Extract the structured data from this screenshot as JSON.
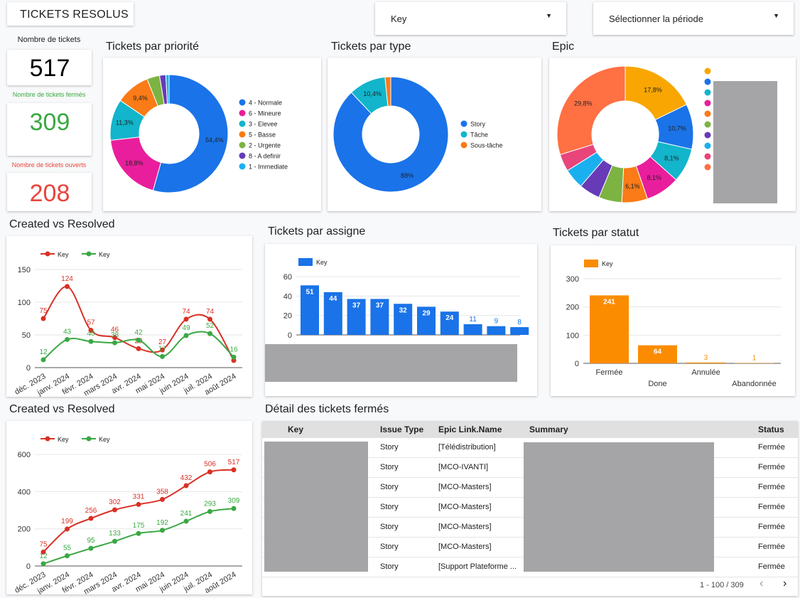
{
  "header": {
    "title": "TICKETS RESOLUS"
  },
  "filters": {
    "key_label": "Key",
    "period_label": "Sélectionner la période"
  },
  "kpis": {
    "total": {
      "label": "Nombre de tickets",
      "value": "517",
      "color": "#000000"
    },
    "closed": {
      "label": "Nombre de tickets fermés",
      "value": "309",
      "color": "#3aa843"
    },
    "open": {
      "label": "Nombre de tickets ouverts",
      "value": "208",
      "color": "#e8453c"
    }
  },
  "chart_data": [
    {
      "id": "priorite",
      "type": "pie",
      "title": "Tickets par priorité",
      "donut": true,
      "slices": [
        {
          "label": "4 - Normale",
          "value": 54.4,
          "color": "#1a73e8",
          "display": "54,4%"
        },
        {
          "label": "6 - Mineure",
          "value": 18.8,
          "color": "#e91e9c",
          "display": "18,8%"
        },
        {
          "label": "3 - Elevee",
          "value": 11.3,
          "color": "#12b5cb",
          "display": "11,3%"
        },
        {
          "label": "5 - Basse",
          "value": 9.4,
          "color": "#fa7b17",
          "display": "9,4%"
        },
        {
          "label": "2 - Urgente",
          "value": 3.5,
          "color": "#7cb342",
          "display": ""
        },
        {
          "label": "8 - A definir",
          "value": 1.7,
          "color": "#673ab7",
          "display": ""
        },
        {
          "label": "1 - Immediate",
          "value": 0.9,
          "color": "#1ab0f0",
          "display": ""
        }
      ]
    },
    {
      "id": "type",
      "type": "pie",
      "title": "Tickets par type",
      "donut": true,
      "slices": [
        {
          "label": "Story",
          "value": 88,
          "color": "#1a73e8",
          "display": "88%"
        },
        {
          "label": "Tâche",
          "value": 10.4,
          "color": "#12b5cb",
          "display": "10,4%"
        },
        {
          "label": "Sous-tâche",
          "value": 1.6,
          "color": "#fa7b17",
          "display": ""
        }
      ]
    },
    {
      "id": "epic",
      "type": "pie",
      "title": "Epic",
      "donut": true,
      "slices": [
        {
          "label": "",
          "value": 17.8,
          "color": "#f9a602",
          "display": "17,8%"
        },
        {
          "label": "",
          "value": 10.7,
          "color": "#1a73e8",
          "display": "10,7%"
        },
        {
          "label": "",
          "value": 8.1,
          "color": "#12b5cb",
          "display": "8,1%"
        },
        {
          "label": "",
          "value": 8.1,
          "color": "#e91e9c",
          "display": "8,1%"
        },
        {
          "label": "",
          "value": 6.1,
          "color": "#fa7b17",
          "display": "6,1%"
        },
        {
          "label": "",
          "value": 5.5,
          "color": "#7cb342",
          "display": ""
        },
        {
          "label": "",
          "value": 5.0,
          "color": "#673ab7",
          "display": ""
        },
        {
          "label": "",
          "value": 4.8,
          "color": "#1ab0f0",
          "display": ""
        },
        {
          "label": "",
          "value": 4.1,
          "color": "#e8457a",
          "display": ""
        },
        {
          "label": "",
          "value": 29.8,
          "color": "#ff7043",
          "display": "29,8%"
        }
      ]
    },
    {
      "id": "created_resolved",
      "type": "line",
      "title": "Created vs Resolved",
      "categories": [
        "déc. 2023",
        "janv. 2024",
        "févr. 2024",
        "mars 2024",
        "avr. 2024",
        "mai 2024",
        "juin 2024",
        "juil. 2024",
        "août 2024"
      ],
      "series": [
        {
          "name": "Key",
          "color": "#d93025",
          "values": [
            75,
            124,
            57,
            46,
            29,
            27,
            74,
            74,
            11
          ],
          "labels": [
            "75",
            "124",
            "57",
            "46",
            "29",
            "27",
            "74",
            "74",
            ""
          ]
        },
        {
          "name": "Key",
          "color": "#3aa843",
          "values": [
            12,
            43,
            40,
            38,
            42,
            17,
            49,
            52,
            16
          ],
          "labels": [
            "12",
            "43",
            "40",
            "38",
            "42",
            "17",
            "49",
            "52",
            "16"
          ]
        }
      ],
      "yticks": [
        0,
        50,
        100,
        150
      ],
      "ylim": [
        0,
        150
      ]
    },
    {
      "id": "created_resolved_cumul",
      "type": "line",
      "title": "Created vs Resolved",
      "categories": [
        "déc. 2023",
        "janv. 2024",
        "févr. 2024",
        "mars 2024",
        "avr. 2024",
        "mai 2024",
        "juin 2024",
        "juil. 2024",
        "août 2024"
      ],
      "series": [
        {
          "name": "Key",
          "color": "#d93025",
          "values": [
            75,
            199,
            256,
            302,
            331,
            358,
            432,
            506,
            517
          ],
          "labels": [
            "75",
            "199",
            "256",
            "302",
            "331",
            "358",
            "432",
            "506",
            "517"
          ]
        },
        {
          "name": "Key",
          "color": "#3aa843",
          "values": [
            12,
            55,
            95,
            133,
            175,
            192,
            241,
            293,
            309
          ],
          "labels": [
            "12",
            "55",
            "95",
            "133",
            "175",
            "192",
            "241",
            "293",
            "309"
          ]
        }
      ],
      "yticks": [
        0,
        200,
        400,
        600
      ],
      "ylim": [
        0,
        650
      ]
    },
    {
      "id": "assigne",
      "type": "bar",
      "title": "Tickets par assigne",
      "legend": "Key",
      "color": "#1a73e8",
      "values": [
        51,
        44,
        37,
        37,
        32,
        29,
        24,
        11,
        9,
        8
      ],
      "yticks": [
        0,
        20,
        40,
        60
      ],
      "ylim": [
        0,
        60
      ]
    },
    {
      "id": "statut",
      "type": "bar",
      "title": "Tickets par statut",
      "legend": "Key",
      "color": "#fb8c00",
      "categories": [
        "Fermée",
        "Done",
        "Annulée",
        "Abandonnée"
      ],
      "values": [
        241,
        64,
        3,
        1
      ],
      "yticks": [
        0,
        100,
        200,
        300
      ],
      "ylim": [
        0,
        300
      ]
    }
  ],
  "table": {
    "title": "Détail des tickets fermés",
    "columns": [
      "Key",
      "Issue Type",
      "Epic Link.Name",
      "Summary",
      "Status"
    ],
    "rows": [
      [
        "",
        "Story",
        "[Télédistribution]",
        "",
        "Fermée"
      ],
      [
        "",
        "Story",
        "[MCO-IVANTI]",
        "",
        "Fermée"
      ],
      [
        "",
        "Story",
        "[MCO-Masters]",
        "",
        "Fermée"
      ],
      [
        "",
        "Story",
        "[MCO-Masters]",
        "",
        "Fermée"
      ],
      [
        "",
        "Story",
        "[MCO-Masters]",
        "",
        "Fermée"
      ],
      [
        "",
        "Story",
        "[MCO-Masters]",
        "",
        "Fermée"
      ],
      [
        "",
        "Story",
        "[Support Plateforme ...",
        "",
        "Fermée"
      ]
    ],
    "pagination": "1 - 100 / 309",
    "prev_icon": "chevron-left-icon",
    "next_icon": "chevron-right-icon"
  }
}
